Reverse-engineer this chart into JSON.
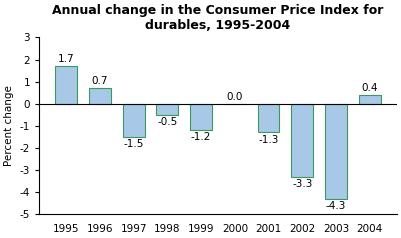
{
  "title": "Annual change in the Consumer Price Index for\ndurables, 1995-2004",
  "years": [
    1995,
    1996,
    1997,
    1998,
    1999,
    2000,
    2001,
    2002,
    2003,
    2004
  ],
  "values": [
    1.7,
    0.7,
    -1.5,
    -0.5,
    -1.2,
    0.0,
    -1.3,
    -3.3,
    -4.3,
    0.4
  ],
  "bar_color": "#a8c8e8",
  "bar_edge_color": "#3a9a5c",
  "ylabel": "Percent change",
  "ylim": [
    -5,
    3
  ],
  "yticks": [
    -5,
    -4,
    -3,
    -2,
    -1,
    0,
    1,
    2,
    3
  ],
  "background_color": "#ffffff",
  "title_fontsize": 9,
  "label_fontsize": 7.5,
  "tick_fontsize": 7.5,
  "value_fontsize": 7.5
}
